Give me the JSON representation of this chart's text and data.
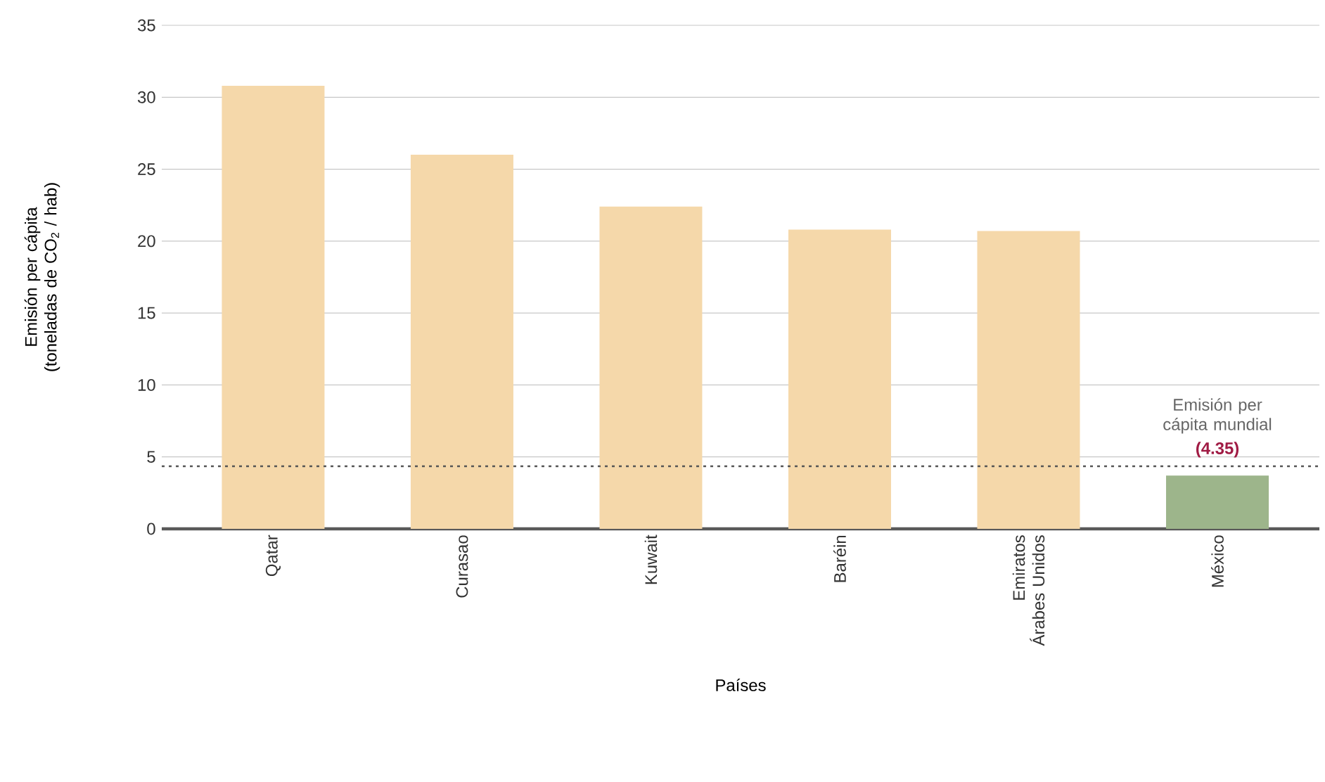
{
  "chart_data": {
    "type": "bar",
    "xlabel": "Países",
    "ylabel": "Emisión per cápita (toneladas de CO$_{2}$ / hab)",
    "categories": [
      "Qatar",
      "Curasao",
      "Kuwait",
      "Baréin",
      "Emiratos Árabes Unidos",
      "México"
    ],
    "values": [
      30.8,
      26.0,
      22.4,
      20.8,
      20.7,
      3.7
    ],
    "colors": [
      "#f5d8aa",
      "#f5d8aa",
      "#f5d8aa",
      "#f5d8aa",
      "#f5d8aa",
      "#9db58b"
    ],
    "ylim": [
      0,
      35
    ],
    "yticks": [
      0,
      5,
      10,
      15,
      20,
      25,
      30,
      35
    ],
    "grid": "y",
    "ref_lines": [
      {
        "axis": "y",
        "value": 4.35,
        "label": "Emisión per cápita mundial",
        "color": "#555555",
        "line_style": "dotted"
      }
    ],
    "annotations": [
      {
        "text": "(4.35)",
        "x": "México",
        "y": 4.35
      }
    ]
  }
}
